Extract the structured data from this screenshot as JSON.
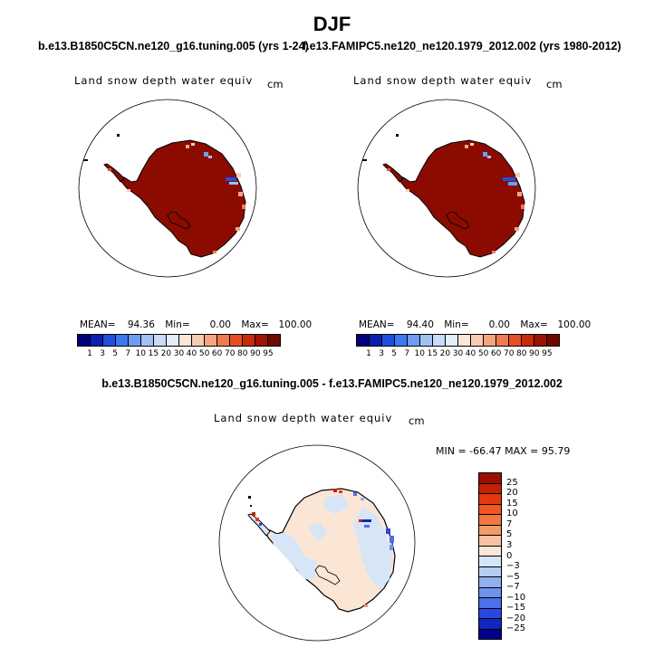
{
  "title": "DJF",
  "panels": [
    {
      "subtitle": "b.e13.B1850C5CN.ne120_g16.tuning.005 (yrs 1-24)",
      "variable": "Land snow depth water equiv",
      "unit": "cm",
      "stats": {
        "mean_label": "MEAN=",
        "mean": "94.36",
        "min_label": "Min=",
        "min": "0.00",
        "max_label": "Max=",
        "max": "100.00"
      }
    },
    {
      "subtitle": "f.e13.FAMIPC5.ne120_ne120.1979_2012.002 (yrs 1980-2012)",
      "variable": "Land snow depth water equiv",
      "unit": "cm",
      "stats": {
        "mean_label": "MEAN=",
        "mean": "94.40",
        "min_label": "Min=",
        "min": "0.00",
        "max_label": "Max=",
        "max": "100.00"
      }
    }
  ],
  "abs_colorbar": {
    "labels": [
      "1",
      "3",
      "5",
      "7",
      "10",
      "15",
      "20",
      "30",
      "40",
      "50",
      "60",
      "70",
      "80",
      "90",
      "95"
    ],
    "colors": [
      "#00007a",
      "#0a1fb4",
      "#1f4fe0",
      "#3c78ef",
      "#6e9df2",
      "#a3c1f3",
      "#c9dbf6",
      "#e3ecf7",
      "#fbe7d8",
      "#f8ccb2",
      "#f4a57f",
      "#ef7c51",
      "#e64f25",
      "#c92a0a",
      "#9d1402",
      "#6e0800"
    ]
  },
  "diff_panel": {
    "title": "b.e13.B1850C5CN.ne120_g16.tuning.005 - f.e13.FAMIPC5.ne120_ne120.1979_2012.002",
    "variable": "Land snow depth water equiv",
    "unit": "cm",
    "stats_text": "MIN = -66.47 MAX =  95.79"
  },
  "diff_colorbar": {
    "labels": [
      "25",
      "20",
      "15",
      "10",
      "7",
      "5",
      "3",
      "0",
      "−3",
      "−5",
      "−7",
      "−10",
      "−15",
      "−20",
      "−25"
    ],
    "colors": [
      "#9c0f00",
      "#c22202",
      "#e23a0c",
      "#f0561f",
      "#f2773f",
      "#f49a69",
      "#f8c2a0",
      "#fbe6d6",
      "#d7e6f6",
      "#b5cdf2",
      "#8eb0ee",
      "#6f93ec",
      "#4a70ea",
      "#2848e0",
      "#1126c2",
      "#00008a"
    ]
  },
  "map_colors": {
    "dark_red": "#8b0b00",
    "diff_base": "#fbe6d6",
    "diff_light_blue": "#d7e6f6",
    "outline": "#000000"
  }
}
